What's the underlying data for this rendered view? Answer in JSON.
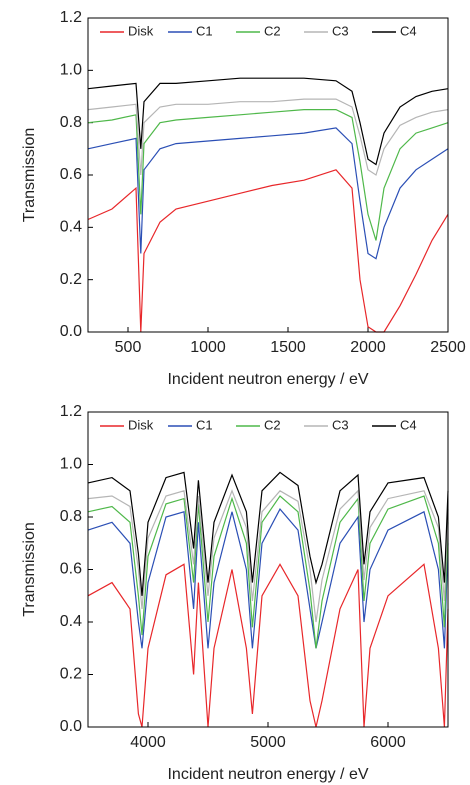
{
  "chart_data": [
    {
      "type": "line",
      "xlabel": "Incident neutron energy / eV",
      "ylabel": "Transmission",
      "x": [
        250,
        400,
        550,
        580,
        600,
        700,
        800,
        1000,
        1200,
        1400,
        1600,
        1800,
        1900,
        1950,
        2000,
        2050,
        2100,
        2200,
        2300,
        2400,
        2500
      ],
      "series": [
        {
          "name": "Disk",
          "color": "#e8272a",
          "values": [
            0.43,
            0.47,
            0.55,
            0.0,
            0.3,
            0.42,
            0.47,
            0.5,
            0.53,
            0.56,
            0.58,
            0.62,
            0.55,
            0.2,
            0.02,
            0.0,
            0.0,
            0.1,
            0.22,
            0.35,
            0.45
          ]
        },
        {
          "name": "C1",
          "color": "#2b4fb5",
          "values": [
            0.7,
            0.72,
            0.74,
            0.3,
            0.62,
            0.7,
            0.72,
            0.73,
            0.74,
            0.75,
            0.76,
            0.78,
            0.72,
            0.5,
            0.3,
            0.28,
            0.4,
            0.55,
            0.62,
            0.66,
            0.7
          ]
        },
        {
          "name": "C2",
          "color": "#4fb84a",
          "values": [
            0.8,
            0.81,
            0.83,
            0.45,
            0.72,
            0.8,
            0.81,
            0.82,
            0.83,
            0.84,
            0.85,
            0.85,
            0.82,
            0.65,
            0.45,
            0.35,
            0.55,
            0.7,
            0.76,
            0.78,
            0.8
          ]
        },
        {
          "name": "C3",
          "color": "#b5b5b5",
          "values": [
            0.85,
            0.86,
            0.87,
            0.6,
            0.8,
            0.86,
            0.87,
            0.87,
            0.88,
            0.88,
            0.89,
            0.89,
            0.86,
            0.75,
            0.62,
            0.6,
            0.7,
            0.79,
            0.82,
            0.84,
            0.85
          ]
        },
        {
          "name": "C4",
          "color": "#000000",
          "values": [
            0.93,
            0.94,
            0.95,
            0.7,
            0.88,
            0.95,
            0.95,
            0.96,
            0.97,
            0.97,
            0.97,
            0.96,
            0.92,
            0.8,
            0.66,
            0.64,
            0.76,
            0.86,
            0.9,
            0.92,
            0.93
          ]
        }
      ],
      "xlim": [
        250,
        2500
      ],
      "xticks": [
        500,
        1000,
        1500,
        2000,
        2500
      ],
      "ylim": [
        0,
        1.2
      ],
      "yticks": [
        {
          "value": 0,
          "label": "0.0"
        },
        0.2,
        0.4,
        0.6,
        0.8,
        {
          "value": 1,
          "label": "1.0"
        },
        1.2
      ],
      "legend": "top"
    },
    {
      "type": "line",
      "xlabel": "Incident neutron energy / eV",
      "ylabel": "Transmission",
      "x": [
        3500,
        3700,
        3850,
        3920,
        3950,
        4000,
        4150,
        4300,
        4380,
        4420,
        4500,
        4550,
        4700,
        4820,
        4870,
        4950,
        5100,
        5250,
        5350,
        5400,
        5450,
        5600,
        5750,
        5800,
        5850,
        6000,
        6300,
        6420,
        6470,
        6500
      ],
      "series": [
        {
          "name": "Disk",
          "color": "#e8272a",
          "values": [
            0.5,
            0.55,
            0.45,
            0.05,
            0.0,
            0.3,
            0.58,
            0.62,
            0.2,
            0.55,
            0.0,
            0.3,
            0.6,
            0.3,
            0.05,
            0.5,
            0.62,
            0.5,
            0.1,
            0.0,
            0.1,
            0.45,
            0.6,
            0.0,
            0.3,
            0.5,
            0.62,
            0.3,
            0.0,
            0.45
          ]
        },
        {
          "name": "C1",
          "color": "#2b4fb5",
          "values": [
            0.75,
            0.78,
            0.7,
            0.4,
            0.3,
            0.55,
            0.8,
            0.82,
            0.45,
            0.78,
            0.3,
            0.55,
            0.82,
            0.6,
            0.3,
            0.7,
            0.83,
            0.75,
            0.45,
            0.3,
            0.4,
            0.7,
            0.8,
            0.4,
            0.6,
            0.75,
            0.82,
            0.6,
            0.3,
            0.7
          ]
        },
        {
          "name": "C2",
          "color": "#4fb84a",
          "values": [
            0.82,
            0.84,
            0.78,
            0.5,
            0.35,
            0.65,
            0.85,
            0.87,
            0.55,
            0.85,
            0.4,
            0.65,
            0.87,
            0.7,
            0.38,
            0.78,
            0.88,
            0.82,
            0.52,
            0.3,
            0.48,
            0.78,
            0.87,
            0.48,
            0.7,
            0.83,
            0.88,
            0.7,
            0.38,
            0.78
          ]
        },
        {
          "name": "C3",
          "color": "#b5b5b5",
          "values": [
            0.87,
            0.88,
            0.84,
            0.6,
            0.45,
            0.72,
            0.88,
            0.9,
            0.62,
            0.88,
            0.5,
            0.72,
            0.9,
            0.76,
            0.48,
            0.82,
            0.9,
            0.86,
            0.6,
            0.4,
            0.56,
            0.83,
            0.9,
            0.56,
            0.76,
            0.87,
            0.9,
            0.76,
            0.48,
            0.83
          ]
        },
        {
          "name": "C4",
          "color": "#000000",
          "values": [
            0.93,
            0.95,
            0.9,
            0.66,
            0.5,
            0.78,
            0.95,
            0.97,
            0.68,
            0.94,
            0.55,
            0.78,
            0.96,
            0.82,
            0.55,
            0.9,
            0.97,
            0.92,
            0.65,
            0.55,
            0.62,
            0.9,
            0.96,
            0.62,
            0.82,
            0.93,
            0.95,
            0.8,
            0.55,
            0.9
          ]
        }
      ],
      "xlim": [
        3500,
        6500
      ],
      "xticks": [
        4000,
        5000,
        6000
      ],
      "ylim": [
        0,
        1.2
      ],
      "yticks": [
        {
          "value": 0,
          "label": "0.0"
        },
        0.2,
        0.4,
        0.6,
        0.8,
        {
          "value": 1,
          "label": "1.0"
        },
        1.2
      ],
      "legend": "top"
    }
  ]
}
